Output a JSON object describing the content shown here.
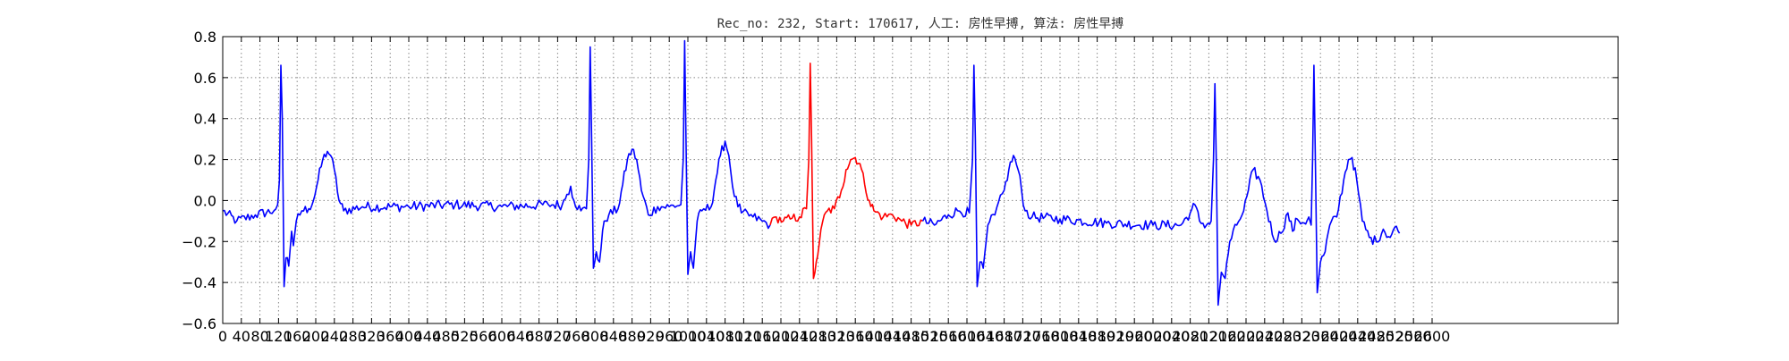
{
  "chart_data": {
    "type": "line",
    "title": "Rec_no: 232, Start: 170617, 人工: 房性早搏, 算法: 房性早搏",
    "xlabel": "",
    "ylabel": "",
    "xlim": [
      0,
      3000
    ],
    "ylim": [
      -0.6,
      0.8
    ],
    "grid": true,
    "y_ticks": [
      "−0.6",
      "−0.4",
      "−0.2",
      "0.0",
      "0.2",
      "0.4",
      "0.6",
      "0.8"
    ],
    "x_tick_step": 40,
    "x_tick_last": 2600,
    "x_tick_labels_mode": "dense-overlapping",
    "colors": {
      "main": "#0000ff",
      "highlight": "#ff0000",
      "grid": "#888888"
    },
    "highlight_range": [
      1177,
      1505
    ],
    "series": [
      {
        "color": "#0000ff",
        "keypoints": [
          [
            0,
            -0.05
          ],
          [
            30,
            -0.1
          ],
          [
            70,
            -0.07
          ],
          [
            110,
            -0.05
          ],
          [
            118,
            -0.02
          ],
          [
            122,
            0.1
          ],
          [
            125,
            0.66
          ],
          [
            128,
            0.4
          ],
          [
            132,
            -0.42
          ],
          [
            136,
            -0.28
          ],
          [
            142,
            -0.32
          ],
          [
            148,
            -0.15
          ],
          [
            152,
            -0.22
          ],
          [
            158,
            -0.1
          ],
          [
            170,
            -0.05
          ],
          [
            185,
            -0.04
          ],
          [
            195,
            0.0
          ],
          [
            205,
            0.1
          ],
          [
            215,
            0.2
          ],
          [
            225,
            0.24
          ],
          [
            232,
            0.22
          ],
          [
            240,
            0.15
          ],
          [
            250,
            0.0
          ],
          [
            260,
            -0.05
          ],
          [
            300,
            -0.03
          ],
          [
            400,
            -0.03
          ],
          [
            500,
            -0.02
          ],
          [
            600,
            -0.03
          ],
          [
            700,
            -0.02
          ],
          [
            730,
            -0.02
          ],
          [
            740,
            0.03
          ],
          [
            748,
            0.07
          ],
          [
            755,
            0.0
          ],
          [
            770,
            -0.05
          ],
          [
            782,
            -0.04
          ],
          [
            787,
            0.2
          ],
          [
            790,
            0.75
          ],
          [
            793,
            0.3
          ],
          [
            797,
            -0.33
          ],
          [
            803,
            -0.25
          ],
          [
            810,
            -0.3
          ],
          [
            820,
            -0.1
          ],
          [
            830,
            -0.07
          ],
          [
            850,
            -0.04
          ],
          [
            860,
            0.08
          ],
          [
            870,
            0.2
          ],
          [
            880,
            0.25
          ],
          [
            890,
            0.2
          ],
          [
            900,
            0.05
          ],
          [
            915,
            -0.07
          ],
          [
            935,
            -0.03
          ],
          [
            960,
            -0.03
          ],
          [
            985,
            -0.02
          ],
          [
            990,
            0.2
          ],
          [
            993,
            0.78
          ],
          [
            996,
            0.3
          ],
          [
            1000,
            -0.36
          ],
          [
            1006,
            -0.25
          ],
          [
            1012,
            -0.33
          ],
          [
            1020,
            -0.1
          ],
          [
            1030,
            -0.05
          ],
          [
            1050,
            -0.03
          ],
          [
            1060,
            0.1
          ],
          [
            1070,
            0.22
          ],
          [
            1080,
            0.29
          ],
          [
            1088,
            0.22
          ],
          [
            1100,
            0.02
          ],
          [
            1115,
            -0.06
          ],
          [
            1140,
            -0.08
          ],
          [
            1160,
            -0.1
          ],
          [
            1177,
            -0.12
          ]
        ]
      },
      {
        "color": "#ff0000",
        "keypoints": [
          [
            1177,
            -0.12
          ],
          [
            1190,
            -0.08
          ],
          [
            1205,
            -0.1
          ],
          [
            1220,
            -0.09
          ],
          [
            1240,
            -0.08
          ],
          [
            1255,
            -0.04
          ],
          [
            1260,
            0.2
          ],
          [
            1263,
            0.67
          ],
          [
            1266,
            0.3
          ],
          [
            1270,
            -0.38
          ],
          [
            1276,
            -0.3
          ],
          [
            1282,
            -0.22
          ],
          [
            1290,
            -0.1
          ],
          [
            1300,
            -0.05
          ],
          [
            1315,
            -0.04
          ],
          [
            1330,
            0.05
          ],
          [
            1340,
            0.15
          ],
          [
            1350,
            0.2
          ],
          [
            1360,
            0.21
          ],
          [
            1370,
            0.18
          ],
          [
            1380,
            0.08
          ],
          [
            1390,
            0.0
          ],
          [
            1400,
            -0.05
          ],
          [
            1420,
            -0.08
          ],
          [
            1440,
            -0.07
          ],
          [
            1460,
            -0.1
          ],
          [
            1480,
            -0.12
          ],
          [
            1505,
            -0.1
          ]
        ]
      },
      {
        "color": "#0000ff",
        "keypoints": [
          [
            1505,
            -0.1
          ],
          [
            1530,
            -0.12
          ],
          [
            1560,
            -0.07
          ],
          [
            1580,
            -0.05
          ],
          [
            1605,
            -0.06
          ],
          [
            1612,
            0.2
          ],
          [
            1615,
            0.66
          ],
          [
            1618,
            0.3
          ],
          [
            1622,
            -0.42
          ],
          [
            1628,
            -0.3
          ],
          [
            1635,
            -0.33
          ],
          [
            1645,
            -0.12
          ],
          [
            1660,
            -0.07
          ],
          [
            1680,
            0.05
          ],
          [
            1690,
            0.15
          ],
          [
            1700,
            0.22
          ],
          [
            1710,
            0.15
          ],
          [
            1725,
            -0.05
          ],
          [
            1740,
            -0.08
          ],
          [
            1800,
            -0.09
          ],
          [
            1900,
            -0.11
          ],
          [
            2000,
            -0.12
          ],
          [
            2060,
            -0.12
          ],
          [
            2080,
            -0.06
          ],
          [
            2090,
            -0.02
          ],
          [
            2100,
            -0.1
          ],
          [
            2115,
            -0.12
          ],
          [
            2125,
            -0.1
          ],
          [
            2130,
            0.2
          ],
          [
            2133,
            0.57
          ],
          [
            2136,
            0.2
          ],
          [
            2140,
            -0.51
          ],
          [
            2147,
            -0.35
          ],
          [
            2155,
            -0.38
          ],
          [
            2165,
            -0.2
          ],
          [
            2180,
            -0.12
          ],
          [
            2195,
            -0.05
          ],
          [
            2205,
            0.05
          ],
          [
            2215,
            0.15
          ],
          [
            2230,
            0.1
          ],
          [
            2245,
            -0.05
          ],
          [
            2260,
            -0.19
          ],
          [
            2275,
            -0.16
          ],
          [
            2290,
            -0.06
          ],
          [
            2300,
            -0.15
          ],
          [
            2310,
            -0.09
          ],
          [
            2325,
            -0.11
          ],
          [
            2335,
            -0.08
          ],
          [
            2340,
            -0.12
          ],
          [
            2343,
            0.2
          ],
          [
            2346,
            0.66
          ],
          [
            2349,
            0.2
          ],
          [
            2353,
            -0.45
          ],
          [
            2360,
            -0.3
          ],
          [
            2370,
            -0.25
          ],
          [
            2380,
            -0.12
          ],
          [
            2395,
            -0.08
          ],
          [
            2410,
            0.1
          ],
          [
            2420,
            0.2
          ],
          [
            2428,
            0.21
          ],
          [
            2438,
            0.1
          ],
          [
            2450,
            -0.1
          ],
          [
            2465,
            -0.18
          ],
          [
            2480,
            -0.2
          ],
          [
            2495,
            -0.14
          ],
          [
            2510,
            -0.18
          ],
          [
            2520,
            -0.13
          ],
          [
            2530,
            -0.16
          ]
        ]
      }
    ]
  }
}
